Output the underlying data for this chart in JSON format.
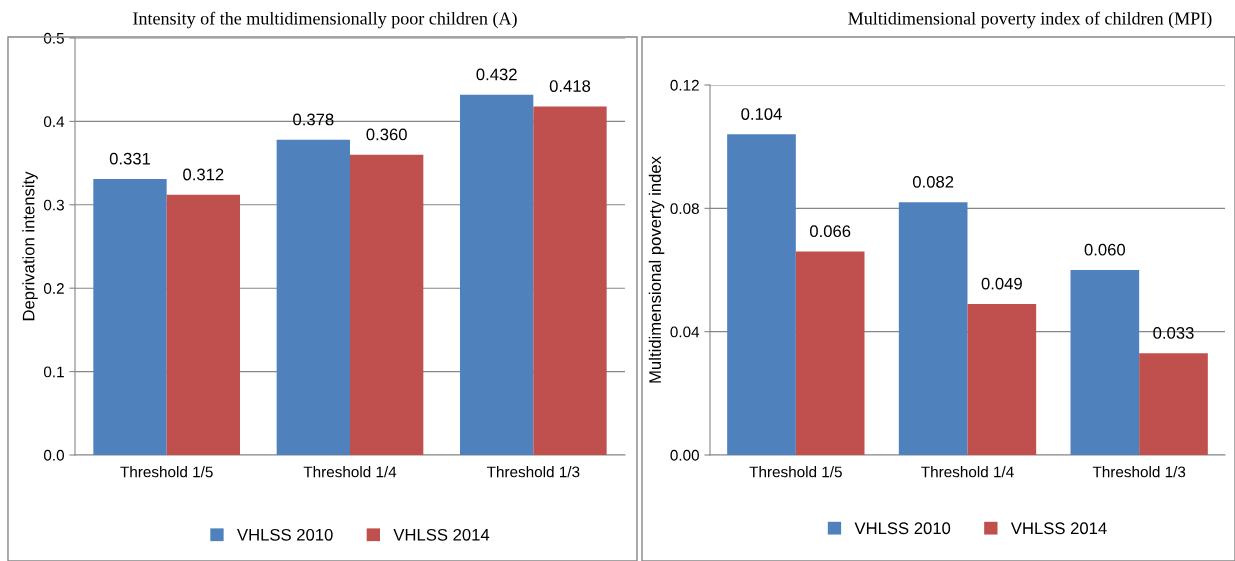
{
  "chart_data": [
    {
      "type": "bar",
      "title": "Intensity of the multidimensionally poor children (A)",
      "ylabel": "Deprivation intensity",
      "categories": [
        "Threshold 1/5",
        "Threshold 1/4",
        "Threshold 1/3"
      ],
      "series": [
        {
          "name": "VHLSS 2010",
          "color": "#4f81bd",
          "values": [
            0.331,
            0.378,
            0.432
          ],
          "value_labels": [
            "0.331",
            "0.378",
            "0.432"
          ]
        },
        {
          "name": "VHLSS 2014",
          "color": "#c0504d",
          "values": [
            0.312,
            0.36,
            0.418
          ],
          "value_labels": [
            "0.312",
            "0.360",
            "0.418"
          ]
        }
      ],
      "ylim": [
        0,
        0.5
      ],
      "yticks": [
        {
          "value": 0,
          "label": "0.0"
        },
        {
          "value": 0.1,
          "label": "0.1"
        },
        {
          "value": 0.2,
          "label": "0.2"
        },
        {
          "value": 0.3,
          "label": "0.3"
        },
        {
          "value": 0.4,
          "label": "0.4"
        },
        {
          "value": 0.5,
          "label": "0.5"
        }
      ],
      "grid": "y",
      "legend": "bottom"
    },
    {
      "type": "bar",
      "title": "Multidimensional poverty index of children (MPI)",
      "ylabel": "Multidimensional poverty index",
      "categories": [
        "Threshold 1/5",
        "Threshold 1/4",
        "Threshold 1/3"
      ],
      "series": [
        {
          "name": "VHLSS 2010",
          "color": "#4f81bd",
          "values": [
            0.104,
            0.082,
            0.06
          ],
          "value_labels": [
            "0.104",
            "0.082",
            "0.060"
          ]
        },
        {
          "name": "VHLSS 2014",
          "color": "#c0504d",
          "values": [
            0.066,
            0.049,
            0.033
          ],
          "value_labels": [
            "0.066",
            "0.049",
            "0.033"
          ]
        }
      ],
      "ylim": [
        0,
        0.12
      ],
      "yticks": [
        {
          "value": 0,
          "label": "0.00"
        },
        {
          "value": 0.04,
          "label": "0.04"
        },
        {
          "value": 0.08,
          "label": "0.08"
        },
        {
          "value": 0.12,
          "label": "0.12"
        }
      ],
      "grid": "y",
      "legend": "bottom"
    }
  ]
}
